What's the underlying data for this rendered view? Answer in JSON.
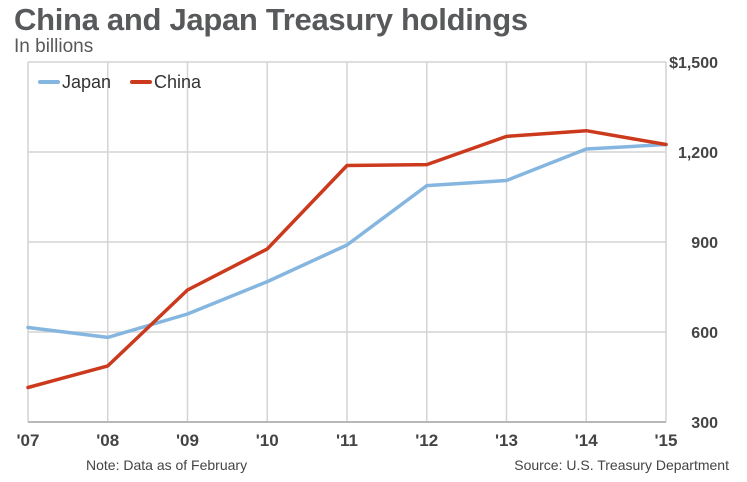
{
  "title": "China and Japan Treasury holdings",
  "subtitle": "In billions",
  "note": "Note: Data as of February",
  "source": "Source: U.S. Treasury Department",
  "colors": {
    "japan": "#85b6e0",
    "china": "#cc3a1e",
    "grid": "#d4d4d4",
    "axis": "#b8b8b8"
  },
  "chart_data": {
    "type": "line",
    "x": [
      "'07",
      "'08",
      "'09",
      "'10",
      "'11",
      "'12",
      "'13",
      "'14",
      "'15"
    ],
    "ylim": [
      300,
      1500
    ],
    "yticks": [
      300,
      600,
      900,
      1200,
      1500
    ],
    "ytick_labels": [
      "300",
      "600",
      "900",
      "1,200",
      "$1,500"
    ],
    "grid": true,
    "legend_position": "top-left",
    "series": [
      {
        "name": "Japan",
        "values": [
          615,
          582,
          660,
          768,
          890,
          1088,
          1105,
          1210,
          1225
        ]
      },
      {
        "name": "China",
        "values": [
          415,
          487,
          740,
          877,
          1155,
          1158,
          1252,
          1271,
          1225
        ]
      }
    ]
  }
}
